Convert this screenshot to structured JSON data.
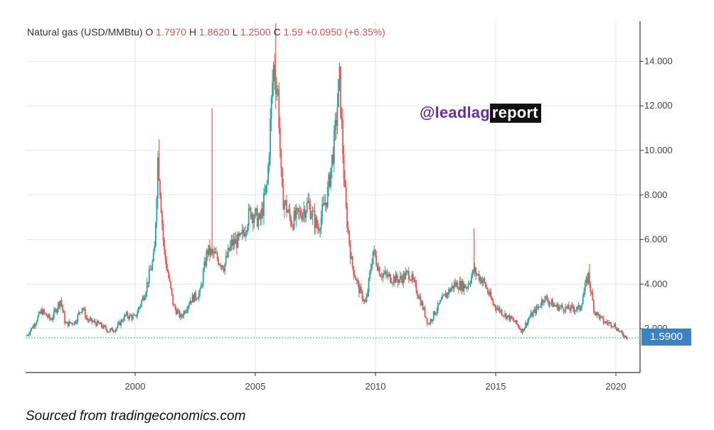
{
  "header": {
    "title": "Natural gas (USD/MMBtu)",
    "open_label": "O",
    "open_value": "1.7970",
    "high_label": "H",
    "high_value": "1.8620",
    "low_label": "L",
    "low_value": "1.2500",
    "close_label": "C",
    "close_value": "1.59",
    "change": "+0.0950 (+6.35%)"
  },
  "watermark": {
    "part1": "@leadlag",
    "part2": "report"
  },
  "last_price_tag": "1.5900",
  "source_note": "Sourced from tradingeconomics.com",
  "colors": {
    "up": "#26a69a",
    "down": "#ef5350",
    "price_tag": "#3b82c4",
    "grid": "#e6e6e6"
  },
  "chart_data": {
    "type": "candlestick",
    "title": "Natural gas (USD/MMBtu)",
    "xlabel": "",
    "ylabel": "",
    "x_ticks": [
      "2000",
      "2005",
      "2010",
      "2015",
      "2020"
    ],
    "y_ticks": [
      "2.000",
      "4.000",
      "6.000",
      "8.000",
      "10.000",
      "12.000",
      "14.000"
    ],
    "ylim": [
      0,
      15.8
    ],
    "xlim": [
      1995.5,
      2020.9
    ],
    "grid": true,
    "last_price": 1.59,
    "approx_close_series": [
      [
        1995.5,
        1.7
      ],
      [
        1995.8,
        2.2
      ],
      [
        1996.1,
        2.8
      ],
      [
        1996.5,
        2.4
      ],
      [
        1996.9,
        3.3
      ],
      [
        1997.1,
        2.2
      ],
      [
        1997.5,
        2.3
      ],
      [
        1997.8,
        3.0
      ],
      [
        1998.0,
        2.4
      ],
      [
        1998.5,
        2.2
      ],
      [
        1998.9,
        1.9
      ],
      [
        1999.2,
        2.0
      ],
      [
        1999.6,
        2.6
      ],
      [
        2000.0,
        2.5
      ],
      [
        2000.4,
        3.6
      ],
      [
        2000.8,
        5.3
      ],
      [
        2000.95,
        9.8
      ],
      [
        2001.2,
        5.5
      ],
      [
        2001.6,
        3.0
      ],
      [
        2001.9,
        2.5
      ],
      [
        2002.3,
        3.3
      ],
      [
        2002.7,
        3.6
      ],
      [
        2003.0,
        5.5
      ],
      [
        2003.3,
        5.3
      ],
      [
        2003.7,
        4.8
      ],
      [
        2004.0,
        5.8
      ],
      [
        2004.4,
        6.0
      ],
      [
        2004.8,
        7.3
      ],
      [
        2005.2,
        6.8
      ],
      [
        2005.5,
        8.5
      ],
      [
        2005.75,
        13.8
      ],
      [
        2005.95,
        12.5
      ],
      [
        2006.1,
        8.0
      ],
      [
        2006.5,
        6.8
      ],
      [
        2006.9,
        7.2
      ],
      [
        2007.2,
        7.6
      ],
      [
        2007.6,
        6.5
      ],
      [
        2008.0,
        8.0
      ],
      [
        2008.3,
        10.5
      ],
      [
        2008.5,
        13.2
      ],
      [
        2008.75,
        7.5
      ],
      [
        2009.0,
        5.0
      ],
      [
        2009.3,
        3.8
      ],
      [
        2009.6,
        3.1
      ],
      [
        2009.9,
        5.5
      ],
      [
        2010.2,
        4.5
      ],
      [
        2010.6,
        4.3
      ],
      [
        2011.0,
        4.2
      ],
      [
        2011.4,
        4.5
      ],
      [
        2011.8,
        3.5
      ],
      [
        2012.2,
        2.2
      ],
      [
        2012.5,
        2.8
      ],
      [
        2012.9,
        3.5
      ],
      [
        2013.3,
        4.0
      ],
      [
        2013.8,
        3.9
      ],
      [
        2014.1,
        4.6
      ],
      [
        2014.5,
        4.1
      ],
      [
        2014.9,
        3.1
      ],
      [
        2015.3,
        2.7
      ],
      [
        2015.8,
        2.3
      ],
      [
        2016.1,
        1.9
      ],
      [
        2016.4,
        2.5
      ],
      [
        2016.8,
        3.0
      ],
      [
        2017.0,
        3.4
      ],
      [
        2017.5,
        3.0
      ],
      [
        2018.0,
        2.9
      ],
      [
        2018.5,
        2.9
      ],
      [
        2018.85,
        4.4
      ],
      [
        2019.1,
        2.8
      ],
      [
        2019.5,
        2.3
      ],
      [
        2019.9,
        2.2
      ],
      [
        2020.2,
        1.8
      ],
      [
        2020.5,
        1.59
      ]
    ],
    "annotated_peaks": [
      {
        "x": 2001.0,
        "high": 10.5
      },
      {
        "x": 2003.2,
        "high": 11.9
      },
      {
        "x": 2005.85,
        "high": 15.7
      },
      {
        "x": 2008.5,
        "high": 13.7
      },
      {
        "x": 2014.1,
        "high": 6.5
      },
      {
        "x": 2018.9,
        "high": 4.9
      }
    ]
  }
}
